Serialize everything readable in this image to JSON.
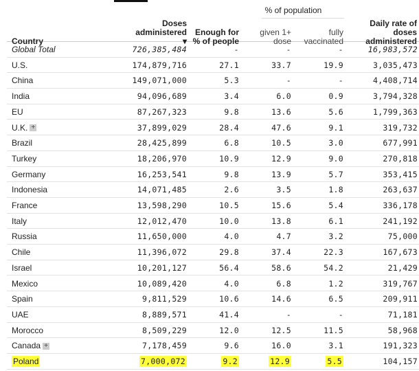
{
  "header": {
    "group_label": "% of population",
    "country": "Country",
    "doses": "Doses administered ▾",
    "enough": "Enough for % of people",
    "given": "given 1+ dose",
    "fully": "fully vaccinated",
    "daily": "Daily rate of doses administered"
  },
  "rows": [
    {
      "country": "Global Total",
      "doses": "726,385,484",
      "enough": "-",
      "given": "-",
      "fully": "-",
      "daily": "16,983,572"
    },
    {
      "country": "U.S.",
      "doses": "174,879,716",
      "enough": "27.1",
      "given": "33.7",
      "fully": "19.9",
      "daily": "3,035,473"
    },
    {
      "country": "China",
      "doses": "149,071,000",
      "enough": "5.3",
      "given": "-",
      "fully": "-",
      "daily": "4,408,714"
    },
    {
      "country": "India",
      "doses": "94,096,689",
      "enough": "3.4",
      "given": "6.0",
      "fully": "0.9",
      "daily": "3,794,328"
    },
    {
      "country": "EU",
      "doses": "87,267,323",
      "enough": "9.8",
      "given": "13.6",
      "fully": "5.6",
      "daily": "1,799,363"
    },
    {
      "country": "U.K.",
      "doses": "37,899,029",
      "enough": "28.4",
      "given": "47.6",
      "fully": "9.1",
      "daily": "319,732",
      "expand": "+"
    },
    {
      "country": "Brazil",
      "doses": "28,425,899",
      "enough": "6.8",
      "given": "10.5",
      "fully": "3.0",
      "daily": "677,991"
    },
    {
      "country": "Turkey",
      "doses": "18,206,970",
      "enough": "10.9",
      "given": "12.9",
      "fully": "9.0",
      "daily": "270,818"
    },
    {
      "country": "Germany",
      "doses": "16,253,541",
      "enough": "9.8",
      "given": "13.9",
      "fully": "5.7",
      "daily": "353,415"
    },
    {
      "country": "Indonesia",
      "doses": "14,071,485",
      "enough": "2.6",
      "given": "3.5",
      "fully": "1.8",
      "daily": "263,637"
    },
    {
      "country": "France",
      "doses": "13,598,290",
      "enough": "10.5",
      "given": "15.6",
      "fully": "5.4",
      "daily": "336,178"
    },
    {
      "country": "Italy",
      "doses": "12,012,470",
      "enough": "10.0",
      "given": "13.8",
      "fully": "6.1",
      "daily": "241,192"
    },
    {
      "country": "Russia",
      "doses": "11,650,000",
      "enough": "4.0",
      "given": "4.7",
      "fully": "3.2",
      "daily": "75,000"
    },
    {
      "country": "Chile",
      "doses": "11,396,072",
      "enough": "29.8",
      "given": "37.4",
      "fully": "22.3",
      "daily": "167,673"
    },
    {
      "country": "Israel",
      "doses": "10,201,127",
      "enough": "56.4",
      "given": "58.6",
      "fully": "54.2",
      "daily": "21,429"
    },
    {
      "country": "Mexico",
      "doses": "10,089,420",
      "enough": "4.0",
      "given": "6.8",
      "fully": "1.2",
      "daily": "319,767"
    },
    {
      "country": "Spain",
      "doses": "9,811,529",
      "enough": "10.6",
      "given": "14.6",
      "fully": "6.5",
      "daily": "209,911"
    },
    {
      "country": "UAE",
      "doses": "8,889,571",
      "enough": "41.4",
      "given": "-",
      "fully": "-",
      "daily": "71,181"
    },
    {
      "country": "Morocco",
      "doses": "8,509,229",
      "enough": "12.0",
      "given": "12.5",
      "fully": "11.5",
      "daily": "58,968"
    },
    {
      "country": "Canada",
      "doses": "7,178,459",
      "enough": "9.6",
      "given": "16.0",
      "fully": "3.1",
      "daily": "191,323",
      "expand": "+"
    },
    {
      "country": "Poland",
      "doses": "7,000,072",
      "enough": "9.2",
      "given": "12.9",
      "fully": "5.5",
      "daily": "104,157",
      "highlight": true
    }
  ],
  "colors": {
    "highlight": "#ffff3a"
  }
}
